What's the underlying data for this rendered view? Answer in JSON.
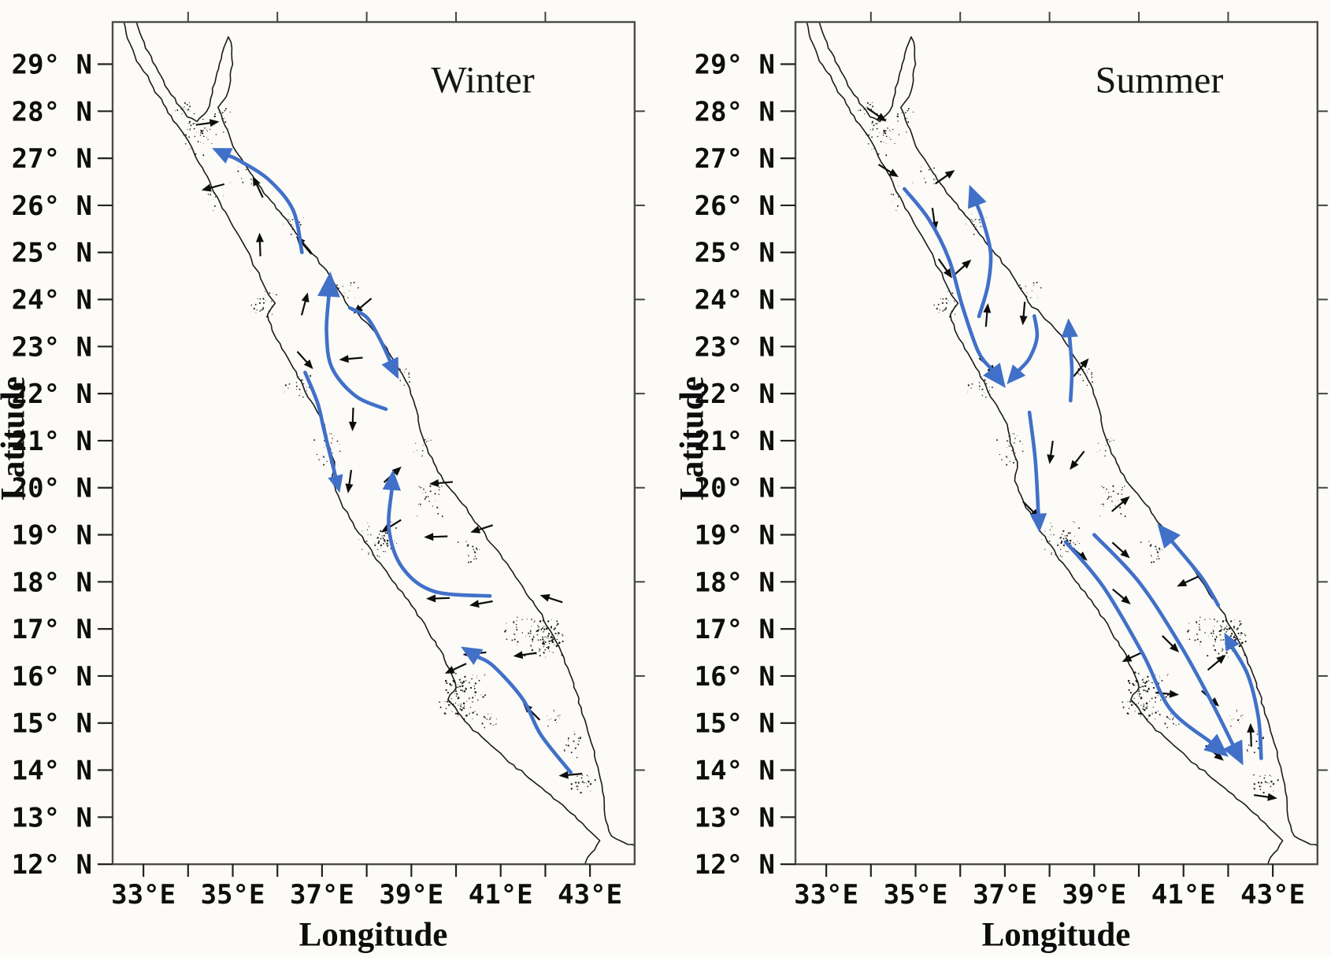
{
  "figure": {
    "background": "#fcfbf7",
    "coast_color": "#1b1b1b",
    "border_color": "#4c4c4c",
    "current_blue": "#4170c9",
    "vector_black": "#0d0d0d"
  },
  "axes": {
    "x_label": "Longitude",
    "y_label": "Latitude",
    "x_ticks": [
      {
        "lon": 33,
        "label": "33°E"
      },
      {
        "lon": 35,
        "label": "35°E"
      },
      {
        "lon": 37,
        "label": "37°E"
      },
      {
        "lon": 39,
        "label": "39°E"
      },
      {
        "lon": 41,
        "label": "41°E"
      },
      {
        "lon": 43,
        "label": "43°E"
      }
    ],
    "minor_tick_lons": [
      33,
      34,
      35,
      36,
      37,
      38,
      39,
      40,
      41,
      42,
      43
    ],
    "top_tick_lons": [
      34,
      36,
      38,
      40,
      42
    ],
    "right_tick_lats": [
      28,
      26,
      24,
      22,
      20,
      18,
      16,
      14
    ],
    "y_ticks": [
      {
        "lat": 29,
        "label": "29° N"
      },
      {
        "lat": 28,
        "label": "28° N"
      },
      {
        "lat": 27,
        "label": "27° N"
      },
      {
        "lat": 26,
        "label": "26° N"
      },
      {
        "lat": 25,
        "label": "25° N"
      },
      {
        "lat": 24,
        "label": "24° N"
      },
      {
        "lat": 23,
        "label": "23° N"
      },
      {
        "lat": 22,
        "label": "22° N"
      },
      {
        "lat": 21,
        "label": "21° N"
      },
      {
        "lat": 20,
        "label": "20° N"
      },
      {
        "lat": 19,
        "label": "19° N"
      },
      {
        "lat": 18,
        "label": "18° N"
      },
      {
        "lat": 17,
        "label": "17° N"
      },
      {
        "lat": 16,
        "label": "16° N"
      },
      {
        "lat": 15,
        "label": "15° N"
      },
      {
        "lat": 14,
        "label": "14° N"
      },
      {
        "lat": 13,
        "label": "13° N"
      },
      {
        "lat": 12,
        "label": "12° N"
      }
    ]
  },
  "map": {
    "region": "Red Sea",
    "coast_west": [
      [
        32.56,
        29.9
      ],
      [
        32.64,
        29.55
      ],
      [
        32.8,
        29.2
      ],
      [
        33.0,
        28.85
      ],
      [
        33.22,
        28.5
      ],
      [
        33.45,
        28.15
      ],
      [
        33.62,
        27.9
      ],
      [
        33.75,
        27.72
      ],
      [
        33.95,
        27.45
      ],
      [
        34.12,
        27.15
      ],
      [
        34.32,
        26.8
      ],
      [
        34.52,
        26.4
      ],
      [
        34.72,
        26.05
      ],
      [
        34.95,
        25.65
      ],
      [
        35.2,
        25.25
      ],
      [
        35.42,
        24.85
      ],
      [
        35.62,
        24.45
      ],
      [
        35.8,
        24.1
      ],
      [
        35.95,
        23.92
      ],
      [
        35.78,
        23.68
      ],
      [
        35.88,
        23.35
      ],
      [
        36.1,
        22.95
      ],
      [
        36.35,
        22.55
      ],
      [
        36.58,
        22.15
      ],
      [
        36.82,
        21.75
      ],
      [
        37.05,
        21.35
      ],
      [
        37.12,
        20.95
      ],
      [
        37.28,
        20.55
      ],
      [
        37.22,
        20.15
      ],
      [
        37.42,
        19.7
      ],
      [
        37.62,
        19.35
      ],
      [
        37.95,
        18.85
      ],
      [
        38.3,
        18.4
      ],
      [
        38.65,
        17.95
      ],
      [
        39.0,
        17.5
      ],
      [
        39.35,
        17.0
      ],
      [
        39.65,
        16.55
      ],
      [
        39.85,
        16.15
      ],
      [
        40.0,
        15.75
      ],
      [
        39.82,
        15.5
      ],
      [
        40.05,
        15.22
      ],
      [
        40.3,
        14.95
      ],
      [
        40.7,
        14.6
      ],
      [
        41.1,
        14.25
      ],
      [
        41.55,
        13.9
      ],
      [
        42.0,
        13.55
      ],
      [
        42.4,
        13.25
      ],
      [
        42.72,
        12.95
      ],
      [
        43.0,
        12.7
      ],
      [
        43.22,
        12.5
      ],
      [
        43.1,
        12.3
      ],
      [
        42.95,
        12.15
      ],
      [
        42.88,
        11.98
      ]
    ],
    "coast_east": [
      [
        44.05,
        12.35
      ],
      [
        43.72,
        12.48
      ],
      [
        43.48,
        12.6
      ],
      [
        43.4,
        12.82
      ],
      [
        43.32,
        13.15
      ],
      [
        43.28,
        13.55
      ],
      [
        43.2,
        13.95
      ],
      [
        43.1,
        14.4
      ],
      [
        42.95,
        14.82
      ],
      [
        42.82,
        15.2
      ],
      [
        42.7,
        15.65
      ],
      [
        42.55,
        16.05
      ],
      [
        42.36,
        16.5
      ],
      [
        42.12,
        16.95
      ],
      [
        41.84,
        17.4
      ],
      [
        41.52,
        17.85
      ],
      [
        41.2,
        18.3
      ],
      [
        40.85,
        18.75
      ],
      [
        40.5,
        19.2
      ],
      [
        40.15,
        19.65
      ],
      [
        39.8,
        20.05
      ],
      [
        39.55,
        20.45
      ],
      [
        39.35,
        20.85
      ],
      [
        39.18,
        21.3
      ],
      [
        39.08,
        21.75
      ],
      [
        38.92,
        22.2
      ],
      [
        38.65,
        22.65
      ],
      [
        38.38,
        23.05
      ],
      [
        38.1,
        23.4
      ],
      [
        37.82,
        23.68
      ],
      [
        37.52,
        23.95
      ],
      [
        37.3,
        24.3
      ],
      [
        37.02,
        24.7
      ],
      [
        36.72,
        25.05
      ],
      [
        36.42,
        25.4
      ],
      [
        36.12,
        25.78
      ],
      [
        35.85,
        26.1
      ],
      [
        35.57,
        26.45
      ],
      [
        35.32,
        26.8
      ],
      [
        35.07,
        27.15
      ],
      [
        34.92,
        27.5
      ],
      [
        34.77,
        27.82
      ],
      [
        34.67,
        28.08
      ],
      [
        34.85,
        28.3
      ],
      [
        34.95,
        28.65
      ],
      [
        35.0,
        29.0
      ],
      [
        34.98,
        29.35
      ],
      [
        34.9,
        29.58
      ],
      [
        34.8,
        29.35
      ],
      [
        34.7,
        29.0
      ],
      [
        34.6,
        28.6
      ],
      [
        34.5,
        28.25
      ],
      [
        34.42,
        28.0
      ],
      [
        34.2,
        27.78
      ],
      [
        33.98,
        27.88
      ],
      [
        33.82,
        28.1
      ],
      [
        33.62,
        28.35
      ],
      [
        33.45,
        28.65
      ],
      [
        33.28,
        28.95
      ],
      [
        33.12,
        29.25
      ],
      [
        32.97,
        29.55
      ],
      [
        32.84,
        29.9
      ]
    ],
    "island_clusters": [
      [
        34.3,
        27.5,
        0.5,
        0.45,
        45,
        1.0
      ],
      [
        33.9,
        28.05,
        0.3,
        0.2,
        16,
        0.9
      ],
      [
        34.75,
        27.9,
        0.25,
        0.2,
        12,
        0.9
      ],
      [
        36.3,
        25.6,
        0.4,
        0.35,
        18,
        0.9
      ],
      [
        34.6,
        26.2,
        0.25,
        0.4,
        14,
        0.9
      ],
      [
        35.2,
        26.6,
        0.3,
        0.25,
        10,
        0.9
      ],
      [
        35.7,
        23.9,
        0.45,
        0.35,
        24,
        1.0
      ],
      [
        37.6,
        24.2,
        0.3,
        0.25,
        12,
        0.9
      ],
      [
        36.5,
        22.2,
        0.35,
        0.3,
        20,
        1.0
      ],
      [
        38.75,
        22.35,
        0.3,
        0.25,
        14,
        0.9
      ],
      [
        37.1,
        20.9,
        0.4,
        0.5,
        28,
        1.0
      ],
      [
        39.25,
        20.9,
        0.25,
        0.3,
        12,
        0.9
      ],
      [
        39.45,
        19.8,
        0.4,
        0.45,
        26,
        1.0
      ],
      [
        38.3,
        18.9,
        0.55,
        0.5,
        55,
        1.1
      ],
      [
        40.3,
        18.6,
        0.4,
        0.35,
        18,
        1.0
      ],
      [
        41.4,
        17.0,
        0.45,
        0.4,
        30,
        1.0
      ],
      [
        42.0,
        16.8,
        0.5,
        0.45,
        95,
        1.15
      ],
      [
        40.15,
        15.6,
        0.55,
        0.55,
        110,
        1.15
      ],
      [
        42.2,
        15.1,
        0.2,
        0.25,
        12,
        1.0
      ],
      [
        40.75,
        15.1,
        0.3,
        0.25,
        14,
        1.0
      ],
      [
        42.6,
        14.6,
        0.3,
        0.4,
        20,
        1.0
      ],
      [
        42.8,
        13.75,
        0.35,
        0.3,
        24,
        1.1
      ]
    ]
  },
  "panels": [
    {
      "id": "winter",
      "title": "Winter",
      "blue_arrows": [
        {
          "pts": [
            [
              36.55,
              25.0
            ],
            [
              36.35,
              25.9
            ],
            [
              35.8,
              26.55
            ],
            [
              35.15,
              26.95
            ],
            [
              34.92,
              27.05
            ]
          ],
          "head": 24
        },
        {
          "pts": [
            [
              38.43,
              21.67
            ],
            [
              37.75,
              21.95
            ],
            [
              37.22,
              22.55
            ],
            [
              37.1,
              23.3
            ],
            [
              37.15,
              24.06
            ]
          ],
          "head": 32
        },
        {
          "pts": [
            [
              37.62,
              23.82
            ],
            [
              38.0,
              23.62
            ],
            [
              38.3,
              23.15
            ],
            [
              38.52,
              22.7
            ]
          ],
          "head": 26
        },
        {
          "pts": [
            [
              36.62,
              22.45
            ],
            [
              36.9,
              21.8
            ],
            [
              37.05,
              21.2
            ],
            [
              37.3,
              20.25
            ]
          ],
          "head": 22
        },
        {
          "pts": [
            [
              40.76,
              17.7
            ],
            [
              39.5,
              17.8
            ],
            [
              38.8,
              18.3
            ],
            [
              38.5,
              19.1
            ],
            [
              38.56,
              19.95
            ]
          ],
          "head": 26
        },
        {
          "pts": [
            [
              42.57,
              13.95
            ],
            [
              41.9,
              14.75
            ],
            [
              41.5,
              15.5
            ],
            [
              40.85,
              16.2
            ],
            [
              40.5,
              16.4
            ]
          ],
          "head": 26
        }
      ],
      "quivers": [
        [
          34.7,
          27.78,
          8
        ],
        [
          34.3,
          26.32,
          195
        ],
        [
          35.45,
          26.62,
          115
        ],
        [
          35.6,
          25.42,
          92
        ],
        [
          36.42,
          25.35,
          130
        ],
        [
          36.68,
          24.15,
          75
        ],
        [
          37.7,
          23.7,
          220
        ],
        [
          37.38,
          22.72,
          185
        ],
        [
          36.8,
          22.52,
          -48
        ],
        [
          37.68,
          21.2,
          268
        ],
        [
          38.78,
          20.45,
          42
        ],
        [
          39.4,
          20.08,
          185
        ],
        [
          37.58,
          19.88,
          262
        ],
        [
          38.32,
          19.05,
          212
        ],
        [
          39.28,
          18.95,
          182
        ],
        [
          40.32,
          19.05,
          198
        ],
        [
          41.88,
          17.72,
          162
        ],
        [
          39.33,
          17.64,
          182
        ],
        [
          40.3,
          17.5,
          190
        ],
        [
          40.15,
          16.45,
          186
        ],
        [
          41.28,
          16.42,
          188
        ],
        [
          41.5,
          15.42,
          135
        ],
        [
          39.75,
          16.05,
          205
        ],
        [
          42.3,
          13.88,
          185
        ]
      ]
    },
    {
      "id": "summer",
      "title": "Summer",
      "blue_arrows": [
        {
          "pts": [
            [
              34.75,
              26.35
            ],
            [
              35.3,
              25.7
            ],
            [
              35.75,
              24.85
            ],
            [
              36.05,
              23.85
            ],
            [
              36.4,
              22.9
            ],
            [
              36.7,
              22.52
            ]
          ],
          "head": 30
        },
        {
          "pts": [
            [
              36.42,
              23.64
            ],
            [
              36.62,
              24.3
            ],
            [
              36.68,
              25.0
            ],
            [
              36.5,
              25.7
            ],
            [
              36.38,
              26.0
            ]
          ],
          "head": 28
        },
        {
          "pts": [
            [
              37.66,
              23.65
            ],
            [
              37.72,
              23.2
            ],
            [
              37.55,
              22.75
            ],
            [
              37.32,
              22.5
            ]
          ],
          "head": 24
        },
        {
          "pts": [
            [
              38.47,
              21.85
            ],
            [
              38.5,
              22.5
            ],
            [
              38.45,
              23.2
            ]
          ],
          "head": 24
        },
        {
          "pts": [
            [
              37.55,
              21.6
            ],
            [
              37.68,
              20.6
            ],
            [
              37.75,
              19.45
            ]
          ],
          "head": 24
        },
        {
          "pts": [
            [
              38.36,
              18.85
            ],
            [
              39.2,
              17.9
            ],
            [
              40.1,
              16.45
            ],
            [
              40.7,
              15.3
            ],
            [
              41.6,
              14.6
            ]
          ],
          "head": 30
        },
        {
          "pts": [
            [
              39.0,
              19.0
            ],
            [
              40.0,
              18.0
            ],
            [
              40.9,
              16.7
            ],
            [
              41.6,
              15.5
            ],
            [
              42.1,
              14.55
            ]
          ],
          "head": 30
        },
        {
          "pts": [
            [
              41.78,
              17.5
            ],
            [
              41.4,
              18.1
            ],
            [
              40.75,
              18.85
            ]
          ],
          "head": 30
        },
        {
          "pts": [
            [
              42.74,
              14.25
            ],
            [
              42.68,
              15.1
            ],
            [
              42.45,
              16.0
            ],
            [
              42.1,
              16.6
            ]
          ],
          "head": 22
        }
      ],
      "quivers": [
        [
          34.35,
          27.78,
          -35
        ],
        [
          35.88,
          26.75,
          35
        ],
        [
          34.62,
          26.6,
          -32
        ],
        [
          35.45,
          25.45,
          278
        ],
        [
          35.82,
          24.45,
          -55
        ],
        [
          36.25,
          24.85,
          42
        ],
        [
          36.62,
          23.92,
          85
        ],
        [
          37.4,
          23.45,
          265
        ],
        [
          38.88,
          22.75,
          50
        ],
        [
          36.82,
          22.42,
          -42
        ],
        [
          38.0,
          20.5,
          262
        ],
        [
          38.45,
          20.38,
          232
        ],
        [
          39.8,
          19.82,
          40
        ],
        [
          37.78,
          19.35,
          -45
        ],
        [
          38.85,
          18.45,
          -40
        ],
        [
          39.8,
          18.5,
          -42
        ],
        [
          40.85,
          17.9,
          205
        ],
        [
          39.82,
          17.52,
          -40
        ],
        [
          39.62,
          16.3,
          205
        ],
        [
          41.95,
          16.45,
          40
        ],
        [
          40.9,
          16.5,
          -45
        ],
        [
          40.9,
          15.6,
          -5
        ],
        [
          41.8,
          15.35,
          -42
        ],
        [
          42.5,
          15.0,
          92
        ],
        [
          41.9,
          14.2,
          -40
        ],
        [
          43.1,
          13.4,
          -8
        ]
      ]
    }
  ]
}
